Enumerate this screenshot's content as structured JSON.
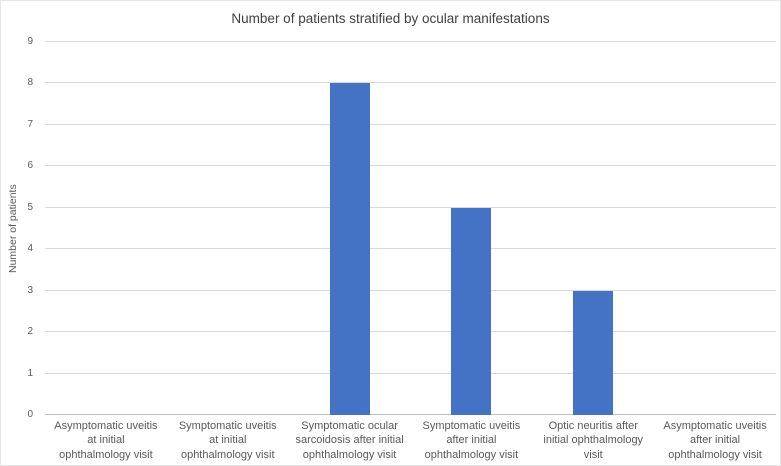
{
  "chart_data": {
    "type": "bar",
    "title": "Number of patients stratified by ocular manifestations",
    "xlabel": "",
    "ylabel": "Number of patients",
    "ylim": [
      0,
      9
    ],
    "ytick_step": 1,
    "grid": true,
    "legend": "none",
    "bar_color": "#4472c4",
    "categories": [
      "Asymptomatic uveitis at initial ophthalmology visit",
      "Symptomatic uveitis at initial ophthalmology visit",
      "Symptomatic ocular sarcoidosis after initial ophthalmology visit",
      "Symptomatic uveitis after initial ophthalmology visit",
      "Optic neuritis after initial ophthalmology visit",
      "Asymptomatic uveitis after initial ophthalmology visit"
    ],
    "values": [
      0,
      0,
      8,
      5,
      3,
      0
    ]
  }
}
